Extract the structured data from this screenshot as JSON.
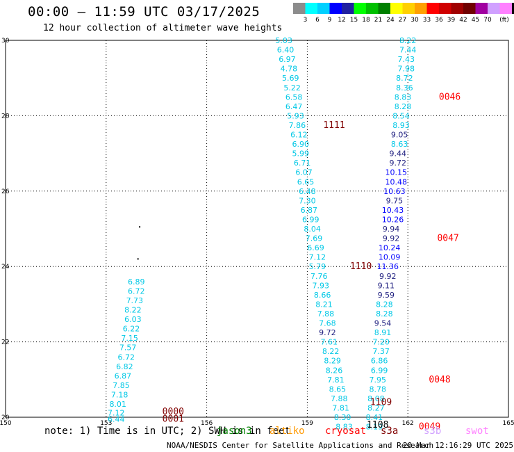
{
  "title": "00:00 – 11:59 UTC 03/17/2025",
  "subtitle": "12 hour collection of altimeter wave heights",
  "colorbar": {
    "colors": [
      "#8c8c8c",
      "#00ffff",
      "#00d0ff",
      "#0000ff",
      "#2020a0",
      "#00ff00",
      "#00c000",
      "#008000",
      "#ffff00",
      "#ffd000",
      "#ffa000",
      "#ff0000",
      "#d00000",
      "#a00000",
      "#700000",
      "#a000a0",
      "#d0a0ff",
      "#ff80ff",
      "#000000"
    ],
    "labels": [
      "3",
      "6",
      "9",
      "12",
      "15",
      "18",
      "21",
      "24",
      "27",
      "30",
      "33",
      "36",
      "39",
      "42",
      "45",
      "70",
      "(ft)"
    ]
  },
  "axes": {
    "x_ticks": [
      "150",
      "153",
      "156",
      "159",
      "162",
      "165"
    ],
    "y_ticks": [
      "30",
      "28",
      "26",
      "24",
      "22",
      "20"
    ]
  },
  "tracks": [
    {
      "satellite": "track-a",
      "values": [
        {
          "v": "6.89",
          "x": 153.9,
          "y": 23.6,
          "c": "#00c8e6"
        },
        {
          "v": "6.72",
          "x": 153.9,
          "y": 23.35,
          "c": "#00c8e6"
        },
        {
          "v": "7.73",
          "x": 153.85,
          "y": 23.1,
          "c": "#00c8e6"
        },
        {
          "v": "8.22",
          "x": 153.8,
          "y": 22.85,
          "c": "#00c8e6"
        },
        {
          "v": "6.03",
          "x": 153.8,
          "y": 22.6,
          "c": "#00c8e6"
        },
        {
          "v": "6.22",
          "x": 153.75,
          "y": 22.35,
          "c": "#00c8e6"
        },
        {
          "v": "7.15",
          "x": 153.7,
          "y": 22.1,
          "c": "#00c8e6"
        },
        {
          "v": "7.57",
          "x": 153.65,
          "y": 21.85,
          "c": "#00c8e6"
        },
        {
          "v": "6.72",
          "x": 153.6,
          "y": 21.6,
          "c": "#00c8e6"
        },
        {
          "v": "6.82",
          "x": 153.55,
          "y": 21.35,
          "c": "#00c8e6"
        },
        {
          "v": "6.87",
          "x": 153.5,
          "y": 21.1,
          "c": "#00c8e6"
        },
        {
          "v": "7.85",
          "x": 153.45,
          "y": 20.85,
          "c": "#00c8e6"
        },
        {
          "v": "7.18",
          "x": 153.4,
          "y": 20.6,
          "c": "#00c8e6"
        },
        {
          "v": "8.01",
          "x": 153.35,
          "y": 20.35,
          "c": "#00c8e6"
        },
        {
          "v": "7.12",
          "x": 153.3,
          "y": 20.12,
          "c": "#00c8e6"
        },
        {
          "v": "6.44",
          "x": 153.3,
          "y": 19.95,
          "c": "#00c8e6"
        }
      ]
    },
    {
      "satellite": "track-b",
      "values": [
        {
          "v": "5.03",
          "x": 158.3,
          "y": 30.0,
          "c": "#00c8e6"
        },
        {
          "v": "6.40",
          "x": 158.35,
          "y": 29.75,
          "c": "#00c8e6"
        },
        {
          "v": "6.97",
          "x": 158.4,
          "y": 29.5,
          "c": "#00c8e6"
        },
        {
          "v": "4.78",
          "x": 158.45,
          "y": 29.25,
          "c": "#00c8e6"
        },
        {
          "v": "5.69",
          "x": 158.5,
          "y": 29.0,
          "c": "#00c8e6"
        },
        {
          "v": "5.22",
          "x": 158.55,
          "y": 28.75,
          "c": "#00c8e6"
        },
        {
          "v": "6.58",
          "x": 158.6,
          "y": 28.5,
          "c": "#00c8e6"
        },
        {
          "v": "6.47",
          "x": 158.6,
          "y": 28.25,
          "c": "#00c8e6"
        },
        {
          "v": "5.93",
          "x": 158.65,
          "y": 28.0,
          "c": "#00c8e6"
        },
        {
          "v": "7.86",
          "x": 158.7,
          "y": 27.75,
          "c": "#00c8e6"
        },
        {
          "v": "6.12",
          "x": 158.75,
          "y": 27.5,
          "c": "#00c8e6"
        },
        {
          "v": "6.90",
          "x": 158.8,
          "y": 27.25,
          "c": "#00c8e6"
        },
        {
          "v": "5.99",
          "x": 158.8,
          "y": 27.0,
          "c": "#00c8e6"
        },
        {
          "v": "6.71",
          "x": 158.85,
          "y": 26.75,
          "c": "#00c8e6"
        },
        {
          "v": "6.07",
          "x": 158.9,
          "y": 26.5,
          "c": "#00c8e6"
        },
        {
          "v": "6.65",
          "x": 158.95,
          "y": 26.25,
          "c": "#00c8e6"
        },
        {
          "v": "6.48",
          "x": 159.0,
          "y": 26.0,
          "c": "#00c8e6"
        },
        {
          "v": "7.30",
          "x": 159.0,
          "y": 25.75,
          "c": "#00c8e6"
        },
        {
          "v": "6.87",
          "x": 159.05,
          "y": 25.5,
          "c": "#00c8e6"
        },
        {
          "v": "6.99",
          "x": 159.1,
          "y": 25.25,
          "c": "#00c8e6"
        },
        {
          "v": "8.04",
          "x": 159.15,
          "y": 25.0,
          "c": "#00c8e6"
        },
        {
          "v": "7.69",
          "x": 159.2,
          "y": 24.75,
          "c": "#00c8e6"
        },
        {
          "v": "6.69",
          "x": 159.25,
          "y": 24.5,
          "c": "#00c8e6"
        },
        {
          "v": "7.12",
          "x": 159.3,
          "y": 24.25,
          "c": "#00c8e6"
        },
        {
          "v": "5.79",
          "x": 159.3,
          "y": 24.0,
          "c": "#00c8e6"
        },
        {
          "v": "7.76",
          "x": 159.35,
          "y": 23.75,
          "c": "#00c8e6"
        },
        {
          "v": "7.93",
          "x": 159.4,
          "y": 23.5,
          "c": "#00c8e6"
        },
        {
          "v": "8.66",
          "x": 159.45,
          "y": 23.25,
          "c": "#00c8e6"
        },
        {
          "v": "8.21",
          "x": 159.5,
          "y": 23.0,
          "c": "#00c8e6"
        },
        {
          "v": "7.88",
          "x": 159.55,
          "y": 22.75,
          "c": "#00c8e6"
        },
        {
          "v": "7.68",
          "x": 159.6,
          "y": 22.5,
          "c": "#00c8e6"
        },
        {
          "v": "9.72",
          "x": 159.6,
          "y": 22.25,
          "c": "#202080"
        },
        {
          "v": "7.61",
          "x": 159.65,
          "y": 22.0,
          "c": "#00c8e6"
        },
        {
          "v": "8.22",
          "x": 159.7,
          "y": 21.75,
          "c": "#00c8e6"
        },
        {
          "v": "8.29",
          "x": 159.75,
          "y": 21.5,
          "c": "#00c8e6"
        },
        {
          "v": "8.26",
          "x": 159.8,
          "y": 21.25,
          "c": "#00c8e6"
        },
        {
          "v": "7.81",
          "x": 159.85,
          "y": 21.0,
          "c": "#00c8e6"
        },
        {
          "v": "8.65",
          "x": 159.9,
          "y": 20.75,
          "c": "#00c8e6"
        },
        {
          "v": "7.88",
          "x": 159.95,
          "y": 20.5,
          "c": "#00c8e6"
        },
        {
          "v": "7.81",
          "x": 160.0,
          "y": 20.25,
          "c": "#00c8e6"
        },
        {
          "v": "8.30",
          "x": 160.05,
          "y": 20.0,
          "c": "#00c8e6"
        },
        {
          "v": "8.83",
          "x": 160.1,
          "y": 19.75,
          "c": "#00c8e6"
        }
      ]
    },
    {
      "satellite": "track-c",
      "values": [
        {
          "v": "8.22",
          "x": 162.0,
          "y": 30.0,
          "c": "#00c8e6"
        },
        {
          "v": "7.44",
          "x": 162.0,
          "y": 29.75,
          "c": "#00c8e6"
        },
        {
          "v": "7.43",
          "x": 161.95,
          "y": 29.5,
          "c": "#00c8e6"
        },
        {
          "v": "7.98",
          "x": 161.95,
          "y": 29.25,
          "c": "#00c8e6"
        },
        {
          "v": "8.72",
          "x": 161.9,
          "y": 29.0,
          "c": "#00c8e6"
        },
        {
          "v": "8.36",
          "x": 161.9,
          "y": 28.75,
          "c": "#00c8e6"
        },
        {
          "v": "8.83",
          "x": 161.85,
          "y": 28.5,
          "c": "#00c8e6"
        },
        {
          "v": "8.28",
          "x": 161.85,
          "y": 28.25,
          "c": "#00c8e6"
        },
        {
          "v": "8.54",
          "x": 161.8,
          "y": 28.0,
          "c": "#00c8e6"
        },
        {
          "v": "8.93",
          "x": 161.8,
          "y": 27.75,
          "c": "#00c8e6"
        },
        {
          "v": "9.05",
          "x": 161.75,
          "y": 27.5,
          "c": "#202080"
        },
        {
          "v": "8.63",
          "x": 161.75,
          "y": 27.25,
          "c": "#00c8e6"
        },
        {
          "v": "9.44",
          "x": 161.7,
          "y": 27.0,
          "c": "#202080"
        },
        {
          "v": "9.72",
          "x": 161.7,
          "y": 26.75,
          "c": "#202080"
        },
        {
          "v": "10.15",
          "x": 161.65,
          "y": 26.5,
          "c": "#0000ff"
        },
        {
          "v": "10.48",
          "x": 161.65,
          "y": 26.25,
          "c": "#0000ff"
        },
        {
          "v": "10.63",
          "x": 161.6,
          "y": 26.0,
          "c": "#0000ff"
        },
        {
          "v": "9.75",
          "x": 161.6,
          "y": 25.75,
          "c": "#202080"
        },
        {
          "v": "10.43",
          "x": 161.55,
          "y": 25.5,
          "c": "#0000ff"
        },
        {
          "v": "10.26",
          "x": 161.55,
          "y": 25.25,
          "c": "#0000ff"
        },
        {
          "v": "9.94",
          "x": 161.5,
          "y": 25.0,
          "c": "#202080"
        },
        {
          "v": "9.92",
          "x": 161.5,
          "y": 24.75,
          "c": "#202080"
        },
        {
          "v": "10.24",
          "x": 161.45,
          "y": 24.5,
          "c": "#0000ff"
        },
        {
          "v": "10.09",
          "x": 161.45,
          "y": 24.25,
          "c": "#0000ff"
        },
        {
          "v": "11.36",
          "x": 161.4,
          "y": 24.0,
          "c": "#0000ff"
        },
        {
          "v": "9.92",
          "x": 161.4,
          "y": 23.75,
          "c": "#202080"
        },
        {
          "v": "9.11",
          "x": 161.35,
          "y": 23.5,
          "c": "#202080"
        },
        {
          "v": "9.59",
          "x": 161.35,
          "y": 23.25,
          "c": "#202080"
        },
        {
          "v": "8.28",
          "x": 161.3,
          "y": 23.0,
          "c": "#00c8e6"
        },
        {
          "v": "8.28",
          "x": 161.3,
          "y": 22.75,
          "c": "#00c8e6"
        },
        {
          "v": "9.54",
          "x": 161.25,
          "y": 22.5,
          "c": "#202080"
        },
        {
          "v": "8.91",
          "x": 161.25,
          "y": 22.25,
          "c": "#00c8e6"
        },
        {
          "v": "7.20",
          "x": 161.2,
          "y": 22.0,
          "c": "#00c8e6"
        },
        {
          "v": "7.37",
          "x": 161.2,
          "y": 21.75,
          "c": "#00c8e6"
        },
        {
          "v": "6.86",
          "x": 161.15,
          "y": 21.5,
          "c": "#00c8e6"
        },
        {
          "v": "6.99",
          "x": 161.15,
          "y": 21.25,
          "c": "#00c8e6"
        },
        {
          "v": "7.95",
          "x": 161.1,
          "y": 21.0,
          "c": "#00c8e6"
        },
        {
          "v": "8.78",
          "x": 161.1,
          "y": 20.75,
          "c": "#00c8e6"
        },
        {
          "v": "8.08",
          "x": 161.05,
          "y": 20.5,
          "c": "#00c8e6"
        },
        {
          "v": "8.27",
          "x": 161.05,
          "y": 20.25,
          "c": "#00c8e6"
        },
        {
          "v": "8.41",
          "x": 161.0,
          "y": 20.0,
          "c": "#00c8e6"
        },
        {
          "v": "8.19",
          "x": 161.0,
          "y": 19.75,
          "c": "#00c8e6"
        }
      ]
    }
  ],
  "time_labels": [
    {
      "t": "0046",
      "x": 163.25,
      "y": 28.5,
      "c": "#ff0000"
    },
    {
      "t": "1111",
      "x": 159.8,
      "y": 27.75,
      "c": "#800000"
    },
    {
      "t": "0047",
      "x": 163.2,
      "y": 24.75,
      "c": "#ff0000"
    },
    {
      "t": "1110",
      "x": 160.6,
      "y": 24.0,
      "c": "#800000"
    },
    {
      "t": "0048",
      "x": 162.95,
      "y": 21.0,
      "c": "#ff0000"
    },
    {
      "t": "1109",
      "x": 161.2,
      "y": 20.4,
      "c": "#800000"
    },
    {
      "t": "1108",
      "x": 161.1,
      "y": 19.8,
      "c": "#000000"
    },
    {
      "t": "0049",
      "x": 162.65,
      "y": 19.75,
      "c": "#ff0000"
    },
    {
      "t": "0000",
      "x": 155.0,
      "y": 20.15,
      "c": "#800000"
    },
    {
      "t": "0001",
      "x": 155.0,
      "y": 19.95,
      "c": "#800000"
    }
  ],
  "dots": [
    {
      "x": 154.0,
      "y": 25.05
    },
    {
      "x": 153.95,
      "y": 24.2
    }
  ],
  "note": "note: 1) Time is in UTC; 2) SWH is in feet",
  "satellites": [
    {
      "name": "jason3",
      "color": "#008000"
    },
    {
      "name": "altiko",
      "color": "#ff9900"
    },
    {
      "name": "cryosat",
      "color": "#ff0000"
    },
    {
      "name": "s3a",
      "color": "#800000"
    },
    {
      "name": "s3b",
      "color": "#d0a0ff"
    },
    {
      "name": "swot",
      "color": "#ff80ff"
    }
  ],
  "footer": "NOAA/NESDIS Center for Satellite Applications and Research",
  "footer_time": "20 Mar 12:16:29 UTC 2025"
}
